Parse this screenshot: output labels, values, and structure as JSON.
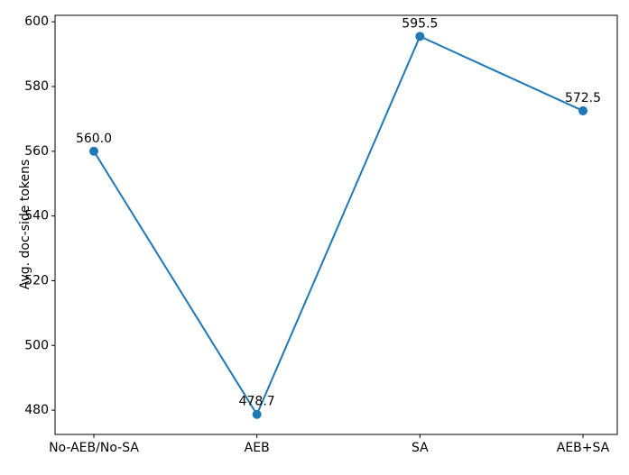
{
  "chart_data": {
    "type": "line",
    "y_label": "Avg. doc-side tokens",
    "categories": [
      "No-AEB/No-SA",
      "AEB",
      "SA",
      "AEB+SA"
    ],
    "series": [
      {
        "color": "#1f77b4",
        "values": [
          560.0,
          478.7,
          595.5,
          572.5
        ],
        "value_labels": [
          "560.0",
          "478.7",
          "595.5",
          "572.5"
        ]
      }
    ],
    "ylim": [
      472.5,
      602
    ],
    "yticks": [
      480,
      500,
      520,
      540,
      560,
      580,
      600
    ],
    "grid": false
  }
}
